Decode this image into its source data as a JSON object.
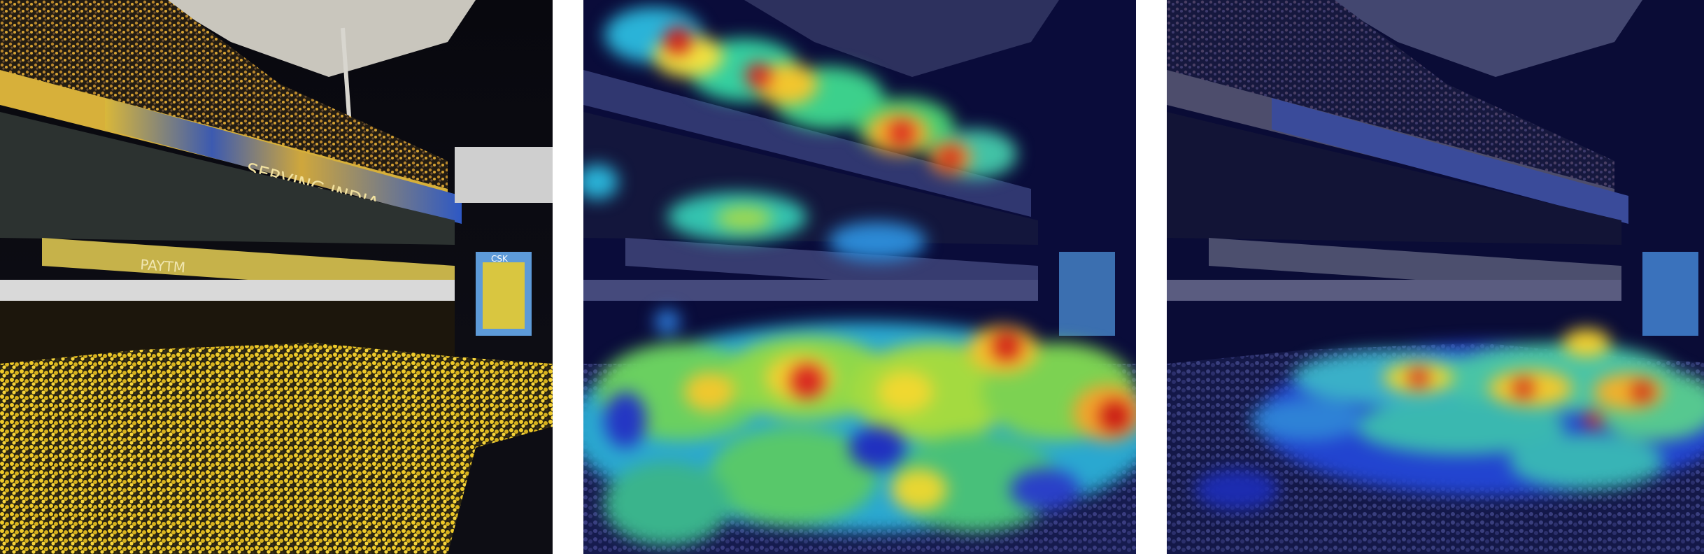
{
  "figure": {
    "panels": [
      {
        "id": "original",
        "overlay": "none"
      },
      {
        "id": "heatmap-a",
        "overlay": "density-heatmap"
      },
      {
        "id": "heatmap-b",
        "overlay": "density-heatmap"
      }
    ],
    "scene": {
      "banner_upper_text": "SERVING INDIA",
      "banner_lower_text": "PAYTM",
      "screen_text": "CSK"
    },
    "colors": {
      "night_sky": "#07070f",
      "crowd_yellow": "#e8c42a",
      "heat_low": "#1a2bd8",
      "heat_high": "#d01818"
    }
  }
}
